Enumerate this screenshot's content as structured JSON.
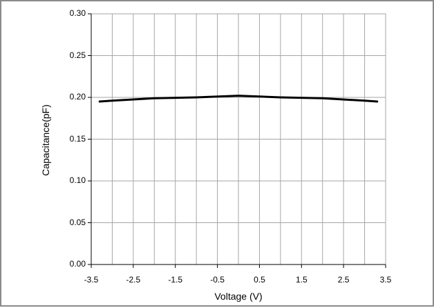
{
  "chart_data": {
    "type": "line",
    "title": "",
    "xlabel": "Voltage (V)",
    "ylabel": "Capacitance(pF)",
    "xlim": [
      -3.5,
      3.5
    ],
    "ylim": [
      0,
      0.3
    ],
    "x_ticks": [
      "-3.5",
      "-2.5",
      "-1.5",
      "-0.5",
      "0.5",
      "1.5",
      "2.5",
      "3.5"
    ],
    "x_tick_values": [
      -3.5,
      -2.5,
      -1.5,
      -0.5,
      0.5,
      1.5,
      2.5,
      3.5
    ],
    "y_ticks": [
      "0.00",
      "0.05",
      "0.10",
      "0.15",
      "0.20",
      "0.25",
      "0.30"
    ],
    "y_tick_values": [
      0,
      0.05,
      0.1,
      0.15,
      0.2,
      0.25,
      0.3
    ],
    "grid": true,
    "grid_x_step": 0.5,
    "line_color": "#000000",
    "series": [
      {
        "x": [
          -3.3,
          -3.0,
          -2.0,
          -1.0,
          0.0,
          1.0,
          2.0,
          3.0,
          3.3
        ],
        "y": [
          0.195,
          0.196,
          0.199,
          0.2,
          0.202,
          0.2,
          0.199,
          0.196,
          0.195
        ]
      }
    ]
  }
}
